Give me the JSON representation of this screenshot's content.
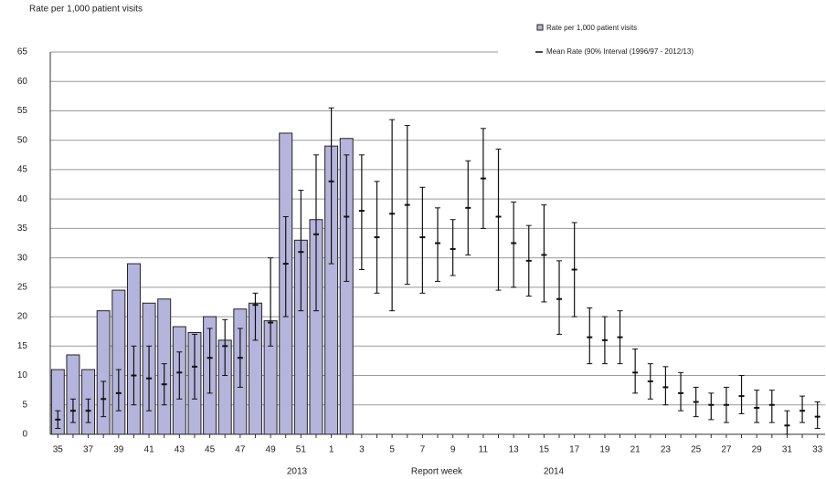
{
  "chart_data": {
    "type": "bar_errorbar",
    "y_label": "Rate per 1,000 patient visits",
    "x_label": "Report week",
    "year_labels": [
      "2013",
      "2014"
    ],
    "categories": [
      "35",
      null,
      "37",
      null,
      "39",
      null,
      "41",
      null,
      "43",
      null,
      "45",
      null,
      "47",
      null,
      "49",
      null,
      "51",
      null,
      "1",
      null,
      "3",
      null,
      "5",
      null,
      "7",
      null,
      "9",
      null,
      "11",
      null,
      "13",
      null,
      "15",
      null,
      "17",
      null,
      "19",
      null,
      "21",
      null,
      "23",
      null,
      "25",
      null,
      "27",
      null,
      "29",
      null,
      "31",
      null,
      "33"
    ],
    "series": [
      {
        "name": "Rate per 1,000 patient visits",
        "color": "#b4b4dc",
        "values": [
          11,
          13.5,
          11,
          21,
          24.5,
          29,
          22.3,
          23,
          18.3,
          17.3,
          20,
          16,
          21.3,
          22.3,
          19.3,
          51.2,
          33,
          36.5,
          49,
          50.3,
          null,
          null,
          null,
          null,
          null,
          null,
          null,
          null,
          null,
          null,
          null,
          null,
          null,
          null,
          null,
          null,
          null,
          null,
          null,
          null,
          null,
          null,
          null,
          null,
          null,
          null,
          null,
          null,
          null,
          null,
          null
        ]
      },
      {
        "name": "Mean Rate (90% Interval (1996/97 - 2012/13)",
        "color": "#111111",
        "values": [
          2.5,
          4,
          4,
          6,
          7,
          10,
          9.5,
          8.5,
          10.5,
          11.5,
          13,
          15,
          13,
          22,
          19,
          29,
          31,
          34,
          43,
          37,
          38,
          33.5,
          37.5,
          39,
          33.5,
          32.5,
          31.5,
          38.5,
          43.5,
          37,
          32.5,
          29.5,
          30.5,
          23,
          28,
          16.5,
          16,
          16.5,
          10.5,
          9,
          8,
          7,
          5.5,
          5,
          5,
          6.5,
          4.5,
          5,
          1.5,
          4,
          3
        ],
        "low": [
          1,
          2,
          2,
          3,
          4,
          5,
          4,
          5,
          6,
          6,
          7,
          10,
          8,
          16,
          15,
          20,
          21,
          21,
          29,
          26,
          28,
          24,
          21,
          25.5,
          24,
          26,
          27,
          30.5,
          35,
          24.5,
          25,
          23.5,
          22.5,
          17,
          20,
          12,
          12,
          12,
          7,
          6,
          5,
          4,
          3,
          2.5,
          2,
          3.5,
          2,
          2,
          0,
          2,
          1
        ],
        "high": [
          4,
          6,
          6,
          9,
          11,
          15,
          15,
          12,
          14,
          17,
          18,
          19.5,
          18,
          24,
          30,
          37,
          41.5,
          47.5,
          55.5,
          47.5,
          47.5,
          43,
          53.5,
          52.5,
          42,
          38.5,
          36.5,
          46.5,
          52,
          48.5,
          39.5,
          35.5,
          39,
          29.5,
          36,
          21.5,
          20,
          21,
          14.5,
          12,
          11.5,
          10.5,
          8,
          7,
          8,
          10,
          7.5,
          7.5,
          4,
          6.5,
          5.5
        ]
      }
    ],
    "ylim": [
      0,
      65
    ],
    "yticks": [
      0,
      5,
      10,
      15,
      20,
      25,
      30,
      35,
      40,
      45,
      50,
      55,
      60,
      65
    ],
    "grid": true
  }
}
